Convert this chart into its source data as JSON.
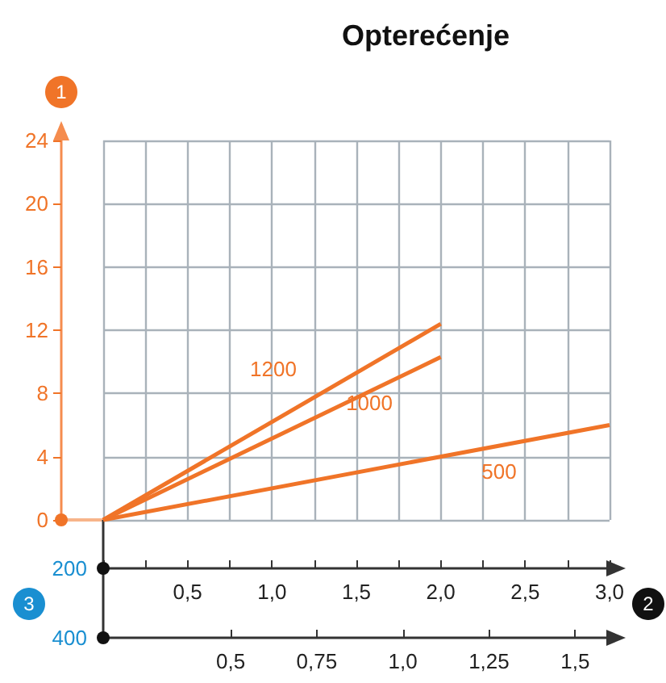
{
  "chart_data": {
    "type": "line",
    "title": "Opterećenje",
    "ylabel": "1",
    "xlabel": "2",
    "x2label": "3",
    "xlim": [
      0,
      3
    ],
    "xticks": [
      {
        "value": 0,
        "label": null
      },
      {
        "value": 0.25,
        "label": null
      },
      {
        "value": 0.5,
        "label": "0,5"
      },
      {
        "value": 0.75,
        "label": null
      },
      {
        "value": 1,
        "label": "1,0"
      },
      {
        "value": 1.25,
        "label": null
      },
      {
        "value": 1.5,
        "label": "1,5"
      },
      {
        "value": 1.75,
        "label": null
      },
      {
        "value": 2,
        "label": "2,0"
      },
      {
        "value": 2.25,
        "label": null
      },
      {
        "value": 2.5,
        "label": "2,5"
      },
      {
        "value": 2.75,
        "label": null
      },
      {
        "value": 3,
        "label": "3,0"
      }
    ],
    "x2lim": [
      0.13,
      1.6
    ],
    "x2ticks": [
      {
        "value": 0.5,
        "label": "0,5"
      },
      {
        "value": 0.75,
        "label": "0,75"
      },
      {
        "value": 1,
        "label": "1,0"
      },
      {
        "value": 1.25,
        "label": "1,25"
      },
      {
        "value": 1.5,
        "label": "1,5"
      }
    ],
    "ylim": [
      0,
      24
    ],
    "yticks": [
      0,
      4,
      8,
      12,
      16,
      20,
      24
    ],
    "grid": true,
    "marker": "none",
    "line_style": "solid",
    "annotations": [
      "200",
      "400"
    ],
    "series": [
      {
        "name": "1200",
        "color": "#f07428",
        "x": [
          0,
          2
        ],
        "values": [
          0,
          12.4
        ]
      },
      {
        "name": "1000",
        "color": "#f07428",
        "x": [
          0,
          2
        ],
        "values": [
          0,
          10.3
        ]
      },
      {
        "name": "500",
        "color": "#f07428",
        "x": [
          0,
          3
        ],
        "values": [
          0,
          6
        ]
      }
    ]
  }
}
